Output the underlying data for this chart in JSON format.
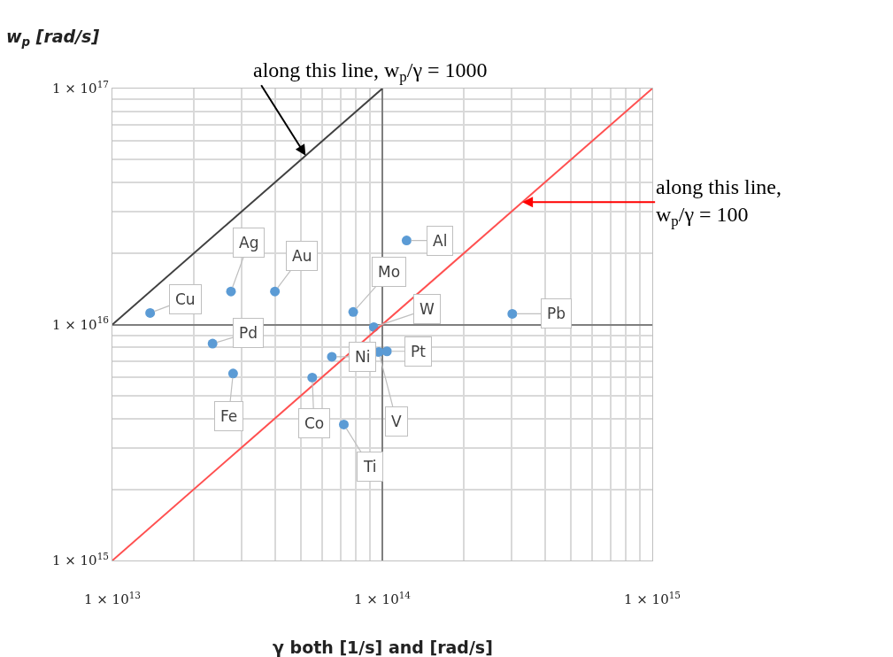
{
  "chart_data": {
    "type": "scatter",
    "xlabel": "γ both [1/s] and [rad/s]",
    "ylabel": "w$_{p}$ [rad/s]",
    "log": "xy",
    "grid": true,
    "marker": "circle",
    "xlim": [
      10000000000000.0,
      1000000000000000.0
    ],
    "ylim": [
      1000000000000000.0,
      1e+17
    ],
    "xticks": [
      {
        "value": 10000000000000.0,
        "label": "1 × 10$^{13}$"
      },
      {
        "value": 20000000000000.0,
        "label": null
      },
      {
        "value": 30000000000000.0,
        "label": null
      },
      {
        "value": 40000000000000.0,
        "label": null
      },
      {
        "value": 50000000000000.0,
        "label": null
      },
      {
        "value": 60000000000000.0,
        "label": null
      },
      {
        "value": 70000000000000.0,
        "label": null
      },
      {
        "value": 80000000000000.0,
        "label": null
      },
      {
        "value": 90000000000000.0,
        "label": null
      },
      {
        "value": 100000000000000.0,
        "label": "1 × 10$^{14}$"
      },
      {
        "value": 200000000000000.0,
        "label": null
      },
      {
        "value": 300000000000000.0,
        "label": null
      },
      {
        "value": 400000000000000.0,
        "label": null
      },
      {
        "value": 500000000000000.0,
        "label": null
      },
      {
        "value": 600000000000000.0,
        "label": null
      },
      {
        "value": 700000000000000.0,
        "label": null
      },
      {
        "value": 800000000000000.0,
        "label": null
      },
      {
        "value": 900000000000000.0,
        "label": null
      },
      {
        "value": 1000000000000000.0,
        "label": "1 × 10$^{15}$"
      }
    ],
    "yticks": [
      {
        "value": 1000000000000000.0,
        "label": "1 × 10$^{15}$"
      },
      {
        "value": 2000000000000000.0,
        "label": null
      },
      {
        "value": 3000000000000000.0,
        "label": null
      },
      {
        "value": 4000000000000000.0,
        "label": null
      },
      {
        "value": 5000000000000000.0,
        "label": null
      },
      {
        "value": 6000000000000000.0,
        "label": null
      },
      {
        "value": 7000000000000000.0,
        "label": null
      },
      {
        "value": 8000000000000000.0,
        "label": null
      },
      {
        "value": 9000000000000000.0,
        "label": null
      },
      {
        "value": 1e+16,
        "label": "1 × 10$^{16}$"
      },
      {
        "value": 2e+16,
        "label": null
      },
      {
        "value": 3e+16,
        "label": null
      },
      {
        "value": 4e+16,
        "label": null
      },
      {
        "value": 5e+16,
        "label": null
      },
      {
        "value": 6e+16,
        "label": null
      },
      {
        "value": 7e+16,
        "label": null
      },
      {
        "value": 8e+16,
        "label": null
      },
      {
        "value": 9e+16,
        "label": null
      },
      {
        "value": 1e+17,
        "label": "1 × 10$^{17}$"
      }
    ],
    "series": [
      {
        "type": "scatter",
        "color": "#5b9bd5",
        "x": [
          13800000000000.0,
          27500000000000.0,
          40000000000000.0,
          23500000000000.0,
          28000000000000.0,
          78000000000000.0,
          93000000000000.0,
          123000000000000.0,
          303000000000000.0,
          65000000000000.0,
          104000000000000.0,
          55000000000000.0,
          72000000000000.0,
          97000000000000.0
        ],
        "values": [
          1.12e+16,
          1.38e+16,
          1.38e+16,
          8300000000000000.0,
          6200000000000000.0,
          1.13e+16,
          9750000000000000.0,
          2.27e+16,
          1.11e+16,
          7300000000000000.0,
          7700000000000000.0,
          5960000000000000.0,
          3770000000000000.0,
          7650000000000000.0
        ]
      },
      {
        "type": "line",
        "color": "#404040",
        "marker": "none",
        "x": [
          10000000000000.0,
          100000000000000.0
        ],
        "values": [
          1e+16,
          1e+17
        ]
      },
      {
        "type": "line",
        "color": "#ff5050",
        "marker": "none",
        "x": [
          10000000000000.0,
          1000000000000000.0
        ],
        "values": [
          1000000000000000.0,
          1e+17
        ]
      }
    ],
    "annotations": [
      {
        "text": "Cu",
        "x": 13800000000000.0,
        "y": 1.12e+16
      },
      {
        "text": "Ag",
        "x": 27500000000000.0,
        "y": 1.38e+16
      },
      {
        "text": "Au",
        "x": 40000000000000.0,
        "y": 1.38e+16
      },
      {
        "text": "Pd",
        "x": 23500000000000.0,
        "y": 8300000000000000.0
      },
      {
        "text": "Fe",
        "x": 28000000000000.0,
        "y": 6200000000000000.0
      },
      {
        "text": "Mo",
        "x": 78000000000000.0,
        "y": 1.13e+16
      },
      {
        "text": "W",
        "x": 93000000000000.0,
        "y": 9750000000000000.0
      },
      {
        "text": "Al",
        "x": 123000000000000.0,
        "y": 2.27e+16
      },
      {
        "text": "Pb",
        "x": 303000000000000.0,
        "y": 1.11e+16
      },
      {
        "text": "Ni",
        "x": 65000000000000.0,
        "y": 7300000000000000.0
      },
      {
        "text": "Pt",
        "x": 104000000000000.0,
        "y": 7700000000000000.0
      },
      {
        "text": "Co",
        "x": 55000000000000.0,
        "y": 5960000000000000.0
      },
      {
        "text": "Ti",
        "x": 72000000000000.0,
        "y": 3770000000000000.0
      },
      {
        "text": "V",
        "x": 97000000000000.0,
        "y": 7650000000000000.0
      },
      {
        "text": "along this line, w$_{p}$/γ = 1000",
        "x": 52000000000000.0,
        "y": 5.2e+16
      },
      {
        "text": "along this line,\nw$_{p}$/γ = 100",
        "x": 330000000000000.0,
        "y": 3.3e+16
      }
    ]
  }
}
